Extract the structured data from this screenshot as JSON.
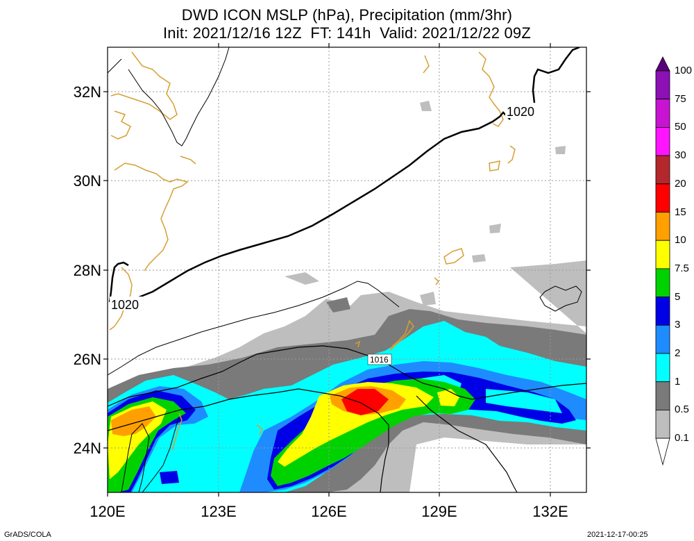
{
  "title": {
    "line1": "DWD ICON MSLP (hPa), Precipitation (mm/3hr)",
    "line2": "Init: 2021/12/16 12Z  FT: 141h  Valid: 2021/12/22 09Z"
  },
  "lat_labels": [
    "32N",
    "30N",
    "28N",
    "26N",
    "24N"
  ],
  "lon_labels": [
    "120E",
    "123E",
    "126E",
    "129E",
    "132E"
  ],
  "contour_labels": [
    "1020",
    "1020",
    "1016"
  ],
  "colorbar": {
    "levels": [
      "100",
      "75",
      "50",
      "30",
      "20",
      "15",
      "10",
      "7.5",
      "5",
      "3",
      "2",
      "1",
      "0.5",
      "0.1"
    ],
    "colors": [
      "#5a007a",
      "#8c10b4",
      "#c814d2",
      "#ff14ff",
      "#b4282d",
      "#ff0000",
      "#ffa000",
      "#ffff00",
      "#00d200",
      "#0000e6",
      "#1e8cff",
      "#00ffff",
      "#7a7a7a",
      "#bebebe",
      "#ffffff"
    ]
  },
  "footer": {
    "left": "GrADS/COLA",
    "right": "2021-12-17-00:25"
  }
}
